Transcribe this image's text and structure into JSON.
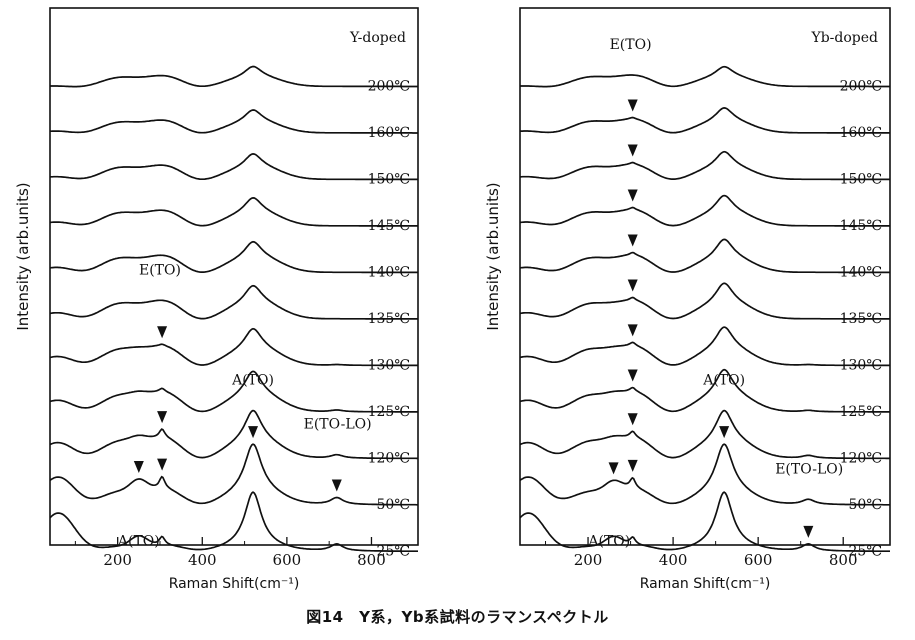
{
  "caption": "図14　Y系，Yb系試料のラマンスペクトル",
  "chart_data": [
    {
      "type": "line",
      "title": "Y-doped",
      "xlabel": "Raman Shift(cm⁻¹)",
      "ylabel": "Intensity (arb.units)",
      "xlim": [
        40,
        910
      ],
      "xticks": [
        "200",
        "400",
        "600",
        "800"
      ],
      "series": [
        {
          "name": "200℃",
          "A_TO1": 0,
          "A_TO1_pos": 250,
          "E_TO": 0,
          "A_TO2": 0.32,
          "E_TOLO": 0,
          "bg": 0.38,
          "low": 0
        },
        {
          "name": "160℃",
          "A_TO1": 0,
          "A_TO1_pos": 250,
          "E_TO": 0,
          "A_TO2": 0.36,
          "E_TOLO": 0,
          "bg": 0.45,
          "low": 0.05
        },
        {
          "name": "150℃",
          "A_TO1": 0,
          "A_TO1_pos": 250,
          "E_TO": 0,
          "A_TO2": 0.4,
          "E_TOLO": 0,
          "bg": 0.5,
          "low": 0.08
        },
        {
          "name": "145℃",
          "A_TO1": 0,
          "A_TO1_pos": 250,
          "E_TO": 0,
          "A_TO2": 0.44,
          "E_TOLO": 0,
          "bg": 0.55,
          "low": 0.12
        },
        {
          "name": "140℃",
          "A_TO1": 0,
          "A_TO1_pos": 250,
          "E_TO": 0,
          "A_TO2": 0.48,
          "E_TOLO": 0,
          "bg": 0.6,
          "low": 0.16
        },
        {
          "name": "135℃",
          "A_TO1": 0,
          "A_TO1_pos": 250,
          "E_TO": 0,
          "A_TO2": 0.52,
          "E_TOLO": 0,
          "bg": 0.65,
          "low": 0.2
        },
        {
          "name": "130℃",
          "A_TO1": 0.05,
          "A_TO1_pos": 250,
          "E_TO": 0.05,
          "A_TO2": 0.6,
          "E_TOLO": 0.02,
          "bg": 0.68,
          "low": 0.3
        },
        {
          "name": "125℃",
          "A_TO1": 0.1,
          "A_TO1_pos": 250,
          "E_TO": 0.1,
          "A_TO2": 0.7,
          "E_TOLO": 0.05,
          "bg": 0.7,
          "low": 0.4
        },
        {
          "name": "120℃",
          "A_TO1": 0.15,
          "A_TO1_pos": 250,
          "E_TO": 0.25,
          "A_TO2": 0.9,
          "E_TOLO": 0.1,
          "bg": 0.72,
          "low": 0.55
        },
        {
          "name": "50℃",
          "A_TO1": 0.35,
          "A_TO1_pos": 250,
          "E_TO": 0.35,
          "A_TO2": 1.4,
          "E_TOLO": 0.2,
          "bg": 0.55,
          "low": 1.0
        },
        {
          "name": "25℃",
          "A_TO1": 0.3,
          "A_TO1_pos": 250,
          "E_TO": 0.25,
          "A_TO2": 1.6,
          "E_TOLO": 0.2,
          "bg": 0.2,
          "low": 1.4
        }
      ],
      "annotations": [
        {
          "text": "E(TO)",
          "x": 300,
          "series": "135℃"
        },
        {
          "text": "A(TO)",
          "x": 520,
          "series": "120℃"
        },
        {
          "text": "E(TO-LO)",
          "x": 720,
          "series": "120℃"
        },
        {
          "text": "A(TO)",
          "x": 250,
          "series": "25℃"
        }
      ],
      "markers": [
        {
          "x": 305,
          "series": "130℃"
        },
        {
          "x": 305,
          "series": "120℃"
        },
        {
          "x": 250,
          "series": "50℃"
        },
        {
          "x": 305,
          "series": "50℃"
        },
        {
          "x": 520,
          "series": "50℃"
        },
        {
          "x": 718,
          "series": "50℃"
        }
      ]
    },
    {
      "type": "line",
      "title": "Yb-doped",
      "xlabel": "Raman Shift(cm⁻¹)",
      "ylabel": "Intensity (arb.units)",
      "xlim": [
        40,
        910
      ],
      "xticks": [
        "200",
        "400",
        "600",
        "800"
      ],
      "series": [
        {
          "name": "200℃",
          "A_TO1": 0,
          "A_TO1_pos": 260,
          "E_TO": 0,
          "A_TO2": 0.3,
          "E_TOLO": 0,
          "bg": 0.4,
          "low": 0
        },
        {
          "name": "160℃",
          "A_TO1": 0,
          "A_TO1_pos": 260,
          "E_TO": 0.05,
          "A_TO2": 0.4,
          "E_TOLO": 0,
          "bg": 0.48,
          "low": 0.05
        },
        {
          "name": "150℃",
          "A_TO1": 0,
          "A_TO1_pos": 260,
          "E_TO": 0.06,
          "A_TO2": 0.45,
          "E_TOLO": 0,
          "bg": 0.52,
          "low": 0.08
        },
        {
          "name": "145℃",
          "A_TO1": 0,
          "A_TO1_pos": 260,
          "E_TO": 0.07,
          "A_TO2": 0.5,
          "E_TOLO": 0,
          "bg": 0.56,
          "low": 0.12
        },
        {
          "name": "140℃",
          "A_TO1": 0,
          "A_TO1_pos": 260,
          "E_TO": 0.08,
          "A_TO2": 0.55,
          "E_TOLO": 0,
          "bg": 0.6,
          "low": 0.16
        },
        {
          "name": "135℃",
          "A_TO1": 0.02,
          "A_TO1_pos": 260,
          "E_TO": 0.09,
          "A_TO2": 0.6,
          "E_TOLO": 0,
          "bg": 0.64,
          "low": 0.2
        },
        {
          "name": "130℃",
          "A_TO1": 0.05,
          "A_TO1_pos": 260,
          "E_TO": 0.1,
          "A_TO2": 0.65,
          "E_TOLO": 0.02,
          "bg": 0.68,
          "low": 0.3
        },
        {
          "name": "125℃",
          "A_TO1": 0.08,
          "A_TO1_pos": 260,
          "E_TO": 0.12,
          "A_TO2": 0.75,
          "E_TOLO": 0.04,
          "bg": 0.7,
          "low": 0.4
        },
        {
          "name": "120℃",
          "A_TO1": 0.12,
          "A_TO1_pos": 260,
          "E_TO": 0.18,
          "A_TO2": 0.9,
          "E_TOLO": 0.08,
          "bg": 0.72,
          "low": 0.55
        },
        {
          "name": "50℃",
          "A_TO1": 0.3,
          "A_TO1_pos": 260,
          "E_TO": 0.3,
          "A_TO2": 1.4,
          "E_TOLO": 0.15,
          "bg": 0.55,
          "low": 1.0
        },
        {
          "name": "25℃",
          "A_TO1": 0.28,
          "A_TO1_pos": 260,
          "E_TO": 0.22,
          "A_TO2": 1.6,
          "E_TOLO": 0.2,
          "bg": 0.2,
          "low": 1.4
        }
      ],
      "annotations": [
        {
          "text": "E(TO)",
          "x": 300,
          "series": "200℃"
        },
        {
          "text": "A(TO)",
          "x": 520,
          "series": "120℃"
        },
        {
          "text": "E(TO-LO)",
          "x": 720,
          "series": "50℃"
        },
        {
          "text": "A(TO)",
          "x": 250,
          "series": "25℃"
        }
      ],
      "markers": [
        {
          "x": 305,
          "series": "160℃"
        },
        {
          "x": 305,
          "series": "150℃"
        },
        {
          "x": 305,
          "series": "145℃"
        },
        {
          "x": 305,
          "series": "140℃"
        },
        {
          "x": 305,
          "series": "135℃"
        },
        {
          "x": 305,
          "series": "130℃"
        },
        {
          "x": 305,
          "series": "125℃"
        },
        {
          "x": 305,
          "series": "120℃"
        },
        {
          "x": 260,
          "series": "50℃"
        },
        {
          "x": 305,
          "series": "50℃"
        },
        {
          "x": 520,
          "series": "50℃"
        },
        {
          "x": 718,
          "series": "25℃"
        }
      ]
    }
  ]
}
